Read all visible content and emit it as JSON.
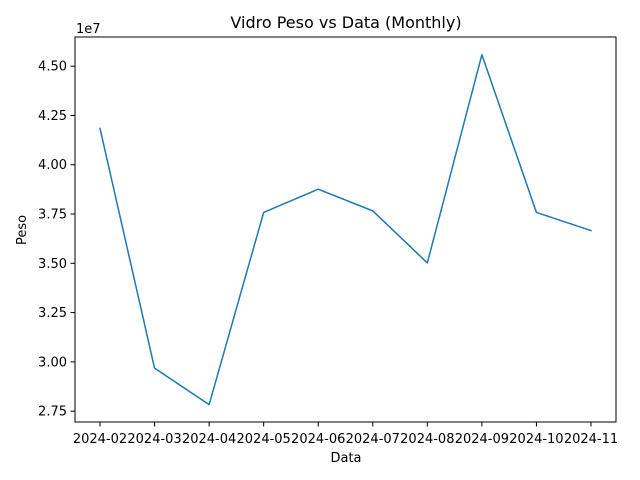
{
  "chart_data": {
    "type": "line",
    "title": "Vidro Peso vs Data (Monthly)",
    "xlabel": "Data",
    "ylabel": "Peso",
    "y_offset_label": "1e7",
    "y_scale_factor": 10000000,
    "x": [
      "2024-01-31",
      "2024-02-29",
      "2024-03-31",
      "2024-04-30",
      "2024-05-31",
      "2024-06-30",
      "2024-07-31",
      "2024-08-31",
      "2024-09-30",
      "2024-10-31"
    ],
    "x_tick_labels": [
      "2024-02",
      "2024-03",
      "2024-04",
      "2024-05",
      "2024-06",
      "2024-07",
      "2024-08",
      "2024-09",
      "2024-10",
      "2024-11"
    ],
    "series": [
      {
        "values": [
          41840000,
          29680000,
          27830000,
          37580000,
          38760000,
          37660000,
          35020000,
          45580000,
          37580000,
          36660000
        ]
      }
    ],
    "y_ticks": [
      27500000,
      30000000,
      32500000,
      35000000,
      37500000,
      40000000,
      42500000,
      45000000
    ],
    "y_tick_labels": [
      "2.75",
      "3.00",
      "3.25",
      "3.50",
      "3.75",
      "4.00",
      "4.25",
      "4.50"
    ],
    "ylim": [
      26950000,
      46480000
    ],
    "grid": false,
    "legend": "none",
    "colors": {
      "line": "#1f77b4",
      "axes": "#000000",
      "background": "#ffffff"
    }
  }
}
